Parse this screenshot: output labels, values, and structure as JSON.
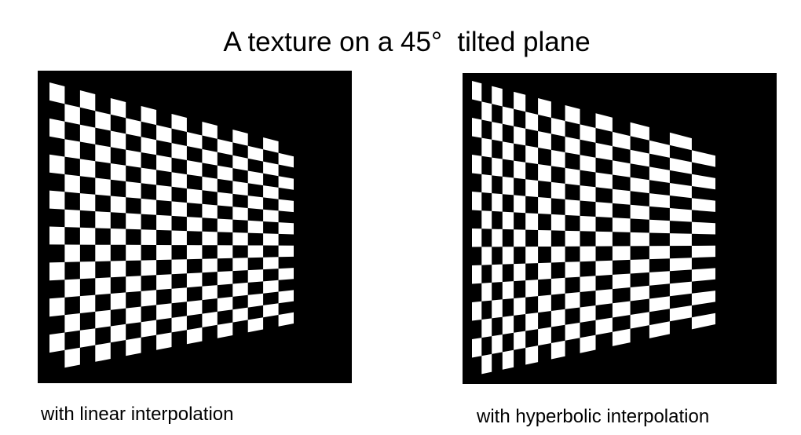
{
  "title": "A texture on a 45°  tilted plane",
  "panels": [
    {
      "caption": "with linear interpolation",
      "interpolation": "linear",
      "checker_rows": 16,
      "checker_cols": 16,
      "colors": {
        "background": "#000000",
        "light_tile": "#ffffff"
      }
    },
    {
      "caption": "with hyperbolic interpolation",
      "interpolation": "hyperbolic",
      "checker_rows": 16,
      "checker_cols": 16,
      "colors": {
        "background": "#000000",
        "light_tile": "#ffffff"
      }
    }
  ]
}
